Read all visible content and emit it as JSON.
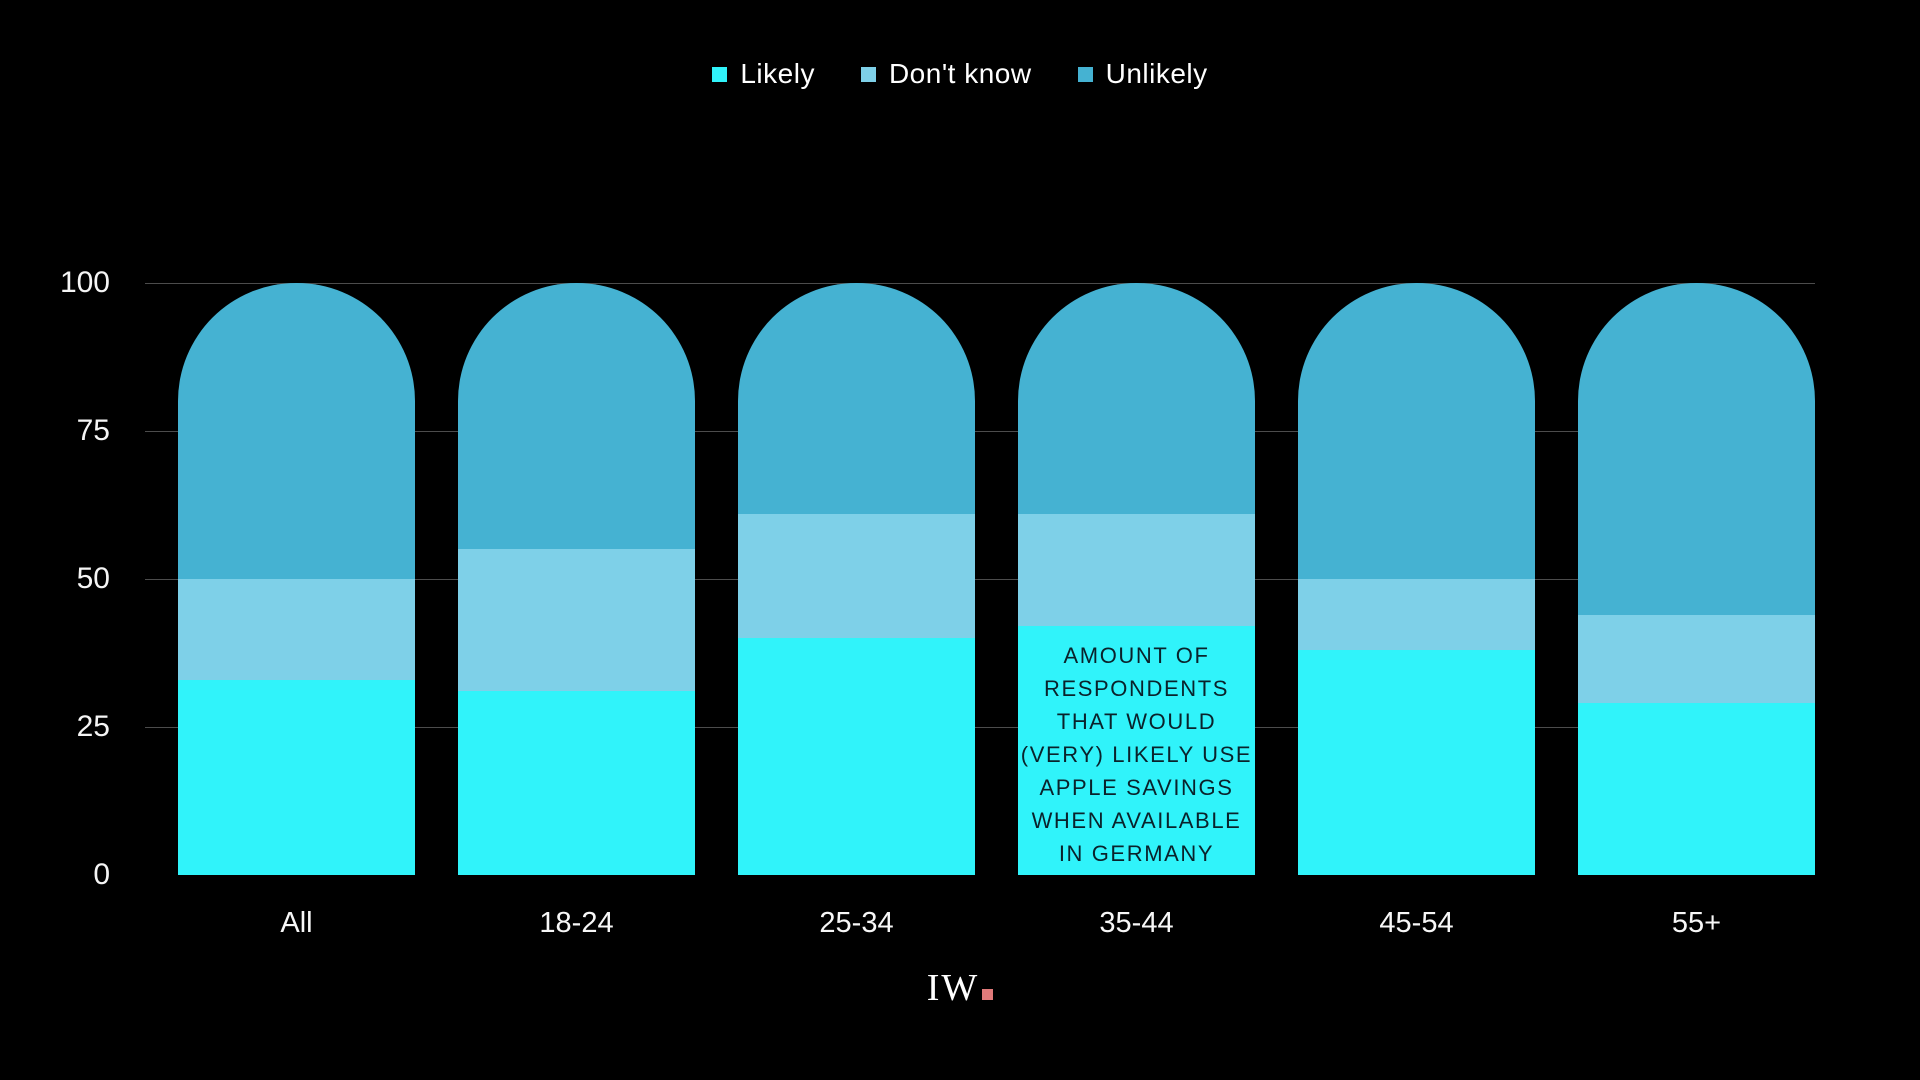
{
  "chart_data": {
    "type": "bar",
    "stacked": true,
    "title": "",
    "categories": [
      "All",
      "18-24",
      "25-34",
      "35-44",
      "45-54",
      "55+"
    ],
    "series": [
      {
        "name": "Likely",
        "color": "#30f3fa",
        "values": [
          33,
          31,
          40,
          42,
          38,
          29
        ]
      },
      {
        "name": "Don't know",
        "color": "#7ed0e8",
        "values": [
          17,
          24,
          21,
          19,
          12,
          15
        ]
      },
      {
        "name": "Unlikely",
        "color": "#45b2d2",
        "values": [
          50,
          45,
          39,
          39,
          50,
          56
        ]
      }
    ],
    "xlabel": "",
    "ylabel": "",
    "ylim": [
      0,
      100
    ],
    "yticks": [
      0,
      25,
      50,
      75,
      100
    ],
    "grid": "horizontal",
    "legend_position": "top-center",
    "annotation": {
      "category": "35-44",
      "text": "AMOUNT OF\nRESPONDENTS\nTHAT WOULD\n(VERY) LIKELY USE\nAPPLE SAVINGS\nWHEN AVAILABLE\nIN GERMANY"
    }
  },
  "legend": {
    "items": [
      {
        "label": "Likely",
        "color": "#30f3fa"
      },
      {
        "label": "Don't know",
        "color": "#7ed0e8"
      },
      {
        "label": "Unlikely",
        "color": "#45b2d2"
      }
    ]
  },
  "logo": {
    "text": "IW",
    "dot_color": "#e07a7a"
  },
  "colors": {
    "background": "#000000",
    "grid": "#4c4c4c",
    "axis_text": "#f5f5f5",
    "annotation_text": "#0a222b"
  }
}
